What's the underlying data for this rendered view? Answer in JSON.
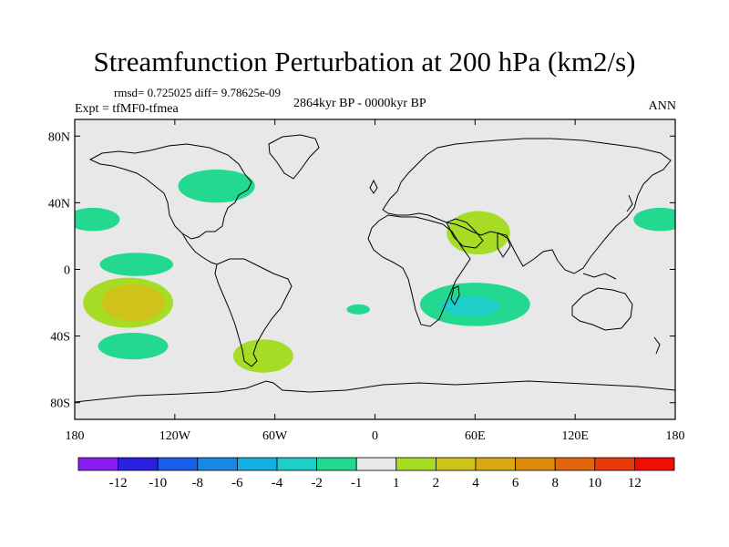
{
  "title": "Streamfunction Perturbation at 200 hPa (km2/s)",
  "rmsd_line": "rmsd= 0.725025 diff= 9.78625e-09",
  "experiment": "Expt = tfMF0-tfmea",
  "period": "2864kyr BP - 0000kyr BP",
  "season": "ANN",
  "map": {
    "lon_range": [
      -180,
      180
    ],
    "lat_range": [
      -90,
      90
    ],
    "background_color": "#e8e8e8",
    "lat_ticks": [
      {
        "value": 80,
        "label": "80N"
      },
      {
        "value": 40,
        "label": "40N"
      },
      {
        "value": 0,
        "label": "0"
      },
      {
        "value": -40,
        "label": "40S"
      },
      {
        "value": -80,
        "label": "80S"
      }
    ],
    "lon_ticks": [
      {
        "value": -180,
        "label": "180"
      },
      {
        "value": -120,
        "label": "120W"
      },
      {
        "value": -60,
        "label": "60W"
      },
      {
        "value": 0,
        "label": "0"
      },
      {
        "value": 60,
        "label": "60E"
      },
      {
        "value": 120,
        "label": "120E"
      },
      {
        "value": 180,
        "label": "180"
      }
    ],
    "anomalies": [
      {
        "name": "n-america-neg",
        "lon": -95,
        "lat": 50,
        "rlon": 23,
        "rlat": 10,
        "color": "#22d98f"
      },
      {
        "name": "w-pacific-edge-neg",
        "lon": -169,
        "lat": 30,
        "rlon": 16,
        "rlat": 7,
        "color": "#22d98f"
      },
      {
        "name": "e-asia-edge-neg",
        "lon": 171,
        "lat": 30,
        "rlon": 16,
        "rlat": 7,
        "color": "#22d98f"
      },
      {
        "name": "trop-pacific-neg",
        "lon": -143,
        "lat": 3,
        "rlon": 22,
        "rlat": 7,
        "color": "#22d98f"
      },
      {
        "name": "s-pacific-pos-outer",
        "lon": -148,
        "lat": -20,
        "rlon": 27,
        "rlat": 15,
        "color": "#a6dc26"
      },
      {
        "name": "s-pacific-pos-inner",
        "lon": -145,
        "lat": -20,
        "rlon": 19,
        "rlat": 11,
        "color": "#cfc21a"
      },
      {
        "name": "s-pacific-low-neg",
        "lon": -145,
        "lat": -46,
        "rlon": 21,
        "rlat": 8,
        "color": "#22d98f"
      },
      {
        "name": "s-america-pos",
        "lon": -67,
        "lat": -52,
        "rlon": 18,
        "rlat": 10,
        "color": "#a6dc26"
      },
      {
        "name": "s-atlantic-small-neg",
        "lon": -10,
        "lat": -24,
        "rlon": 7,
        "rlat": 3,
        "color": "#22d98f"
      },
      {
        "name": "arabia-pos",
        "lon": 62,
        "lat": 22,
        "rlon": 19,
        "rlat": 13,
        "color": "#a6dc26"
      },
      {
        "name": "indian-ocean-neg-outer",
        "lon": 60,
        "lat": -21,
        "rlon": 33,
        "rlat": 13,
        "color": "#22d98f"
      },
      {
        "name": "indian-ocean-neg-inner",
        "lon": 57,
        "lat": -22,
        "rlon": 18,
        "rlat": 6,
        "color": "#1ecec8"
      }
    ]
  },
  "colorbar": {
    "colors": [
      "#8a1ef2",
      "#2a20e0",
      "#1a5fe8",
      "#1a87e6",
      "#16aee0",
      "#1ecec8",
      "#22d98f",
      "#e8e8e8",
      "#a6dc26",
      "#cfc21a",
      "#d8aa12",
      "#dc8c0c",
      "#e4660c",
      "#ea3a0a",
      "#f20c06"
    ],
    "labels": [
      "-12",
      "-10",
      "-8",
      "-6",
      "-4",
      "-2",
      "-1",
      "1",
      "2",
      "4",
      "6",
      "8",
      "10",
      "12"
    ]
  }
}
